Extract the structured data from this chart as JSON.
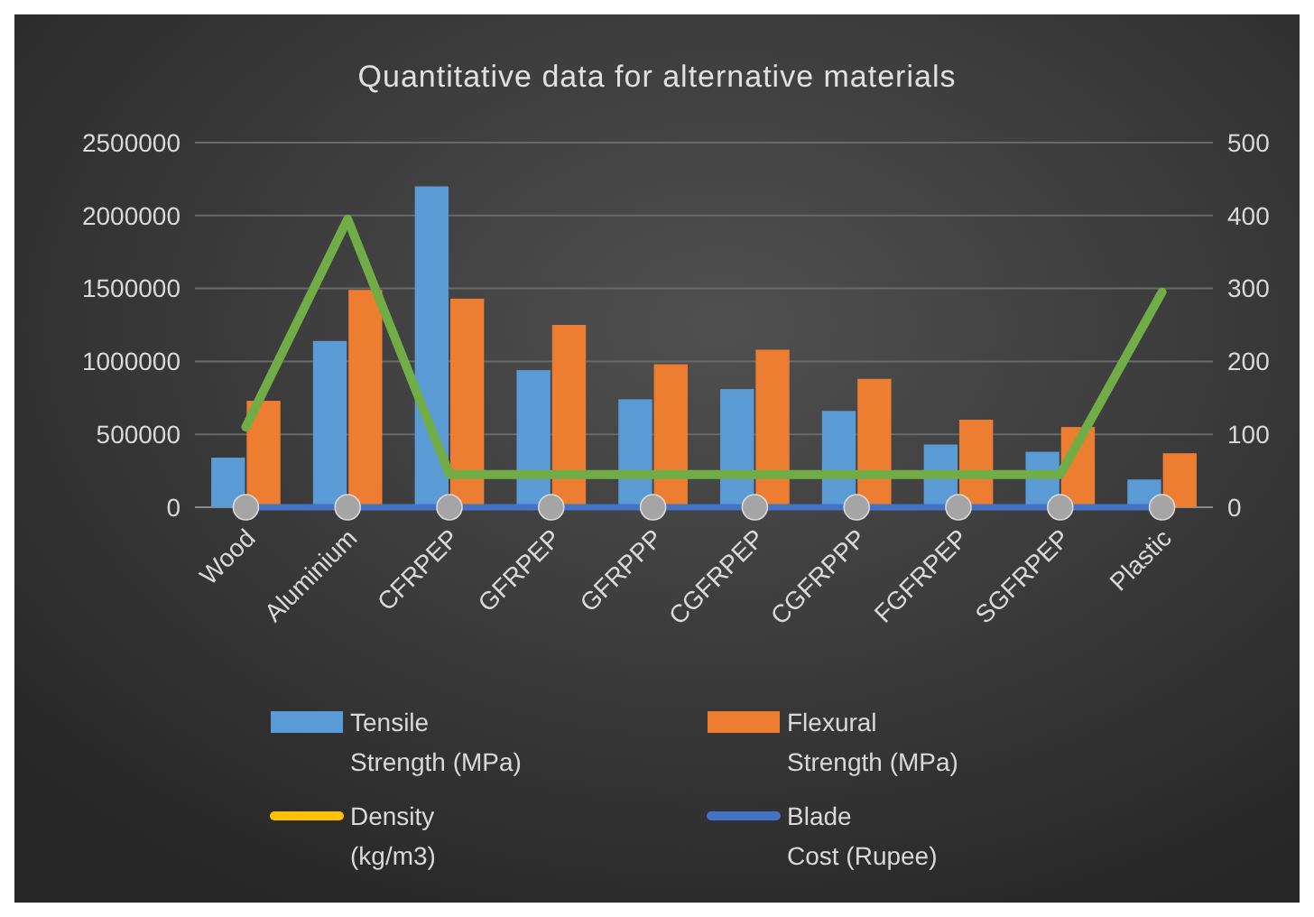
{
  "chart_data": {
    "type": "bar",
    "title": "Quantitative data for alternative materials",
    "categories": [
      "Wood",
      "Aluminium",
      "CFRPEP",
      "GFRPEP",
      "GFRPPP",
      "CGFRPEP",
      "CGFRPPP",
      "FGFRPEP",
      "SGFRPEP",
      "Plastic"
    ],
    "series": [
      {
        "name": "Tensile Strength (MPa)",
        "color": "#5b9bd5",
        "values": [
          340000,
          1140000,
          2200000,
          940000,
          740000,
          810000,
          660000,
          430000,
          380000,
          190000
        ]
      },
      {
        "name": "Flexural Strength (MPa)",
        "color": "#ed7d31",
        "values": [
          730000,
          1490000,
          1430000,
          1250000,
          980000,
          1080000,
          880000,
          600000,
          550000,
          370000
        ]
      },
      {
        "name": "Density (kg/m3)",
        "type": "line",
        "color": "#ffc000",
        "values": [
          null,
          null,
          null,
          null,
          null,
          null,
          null,
          null,
          null,
          null
        ]
      },
      {
        "name": "Blade Cost (Rupee)",
        "type": "line",
        "color": "#4472c4",
        "values": [
          0,
          0,
          0,
          0,
          0,
          0,
          0,
          0,
          0,
          0
        ]
      },
      {
        "type": "line",
        "axis": "y2",
        "color": "#70ad47",
        "values": [
          110,
          395,
          45,
          45,
          45,
          45,
          45,
          45,
          45,
          295
        ]
      },
      {
        "type": "scatter",
        "marker": "circle",
        "color": "#a5a5a5",
        "values": [
          0,
          0,
          0,
          0,
          0,
          0,
          0,
          0,
          0,
          0
        ]
      }
    ],
    "ylim": [
      0,
      2500000
    ],
    "yticks": [
      0,
      500000,
      1000000,
      1500000,
      2000000,
      2500000
    ],
    "y2lim": [
      0,
      500
    ],
    "y2ticks": [
      0,
      100,
      200,
      300,
      400,
      500
    ],
    "grid": "y",
    "legend": "bottom"
  }
}
